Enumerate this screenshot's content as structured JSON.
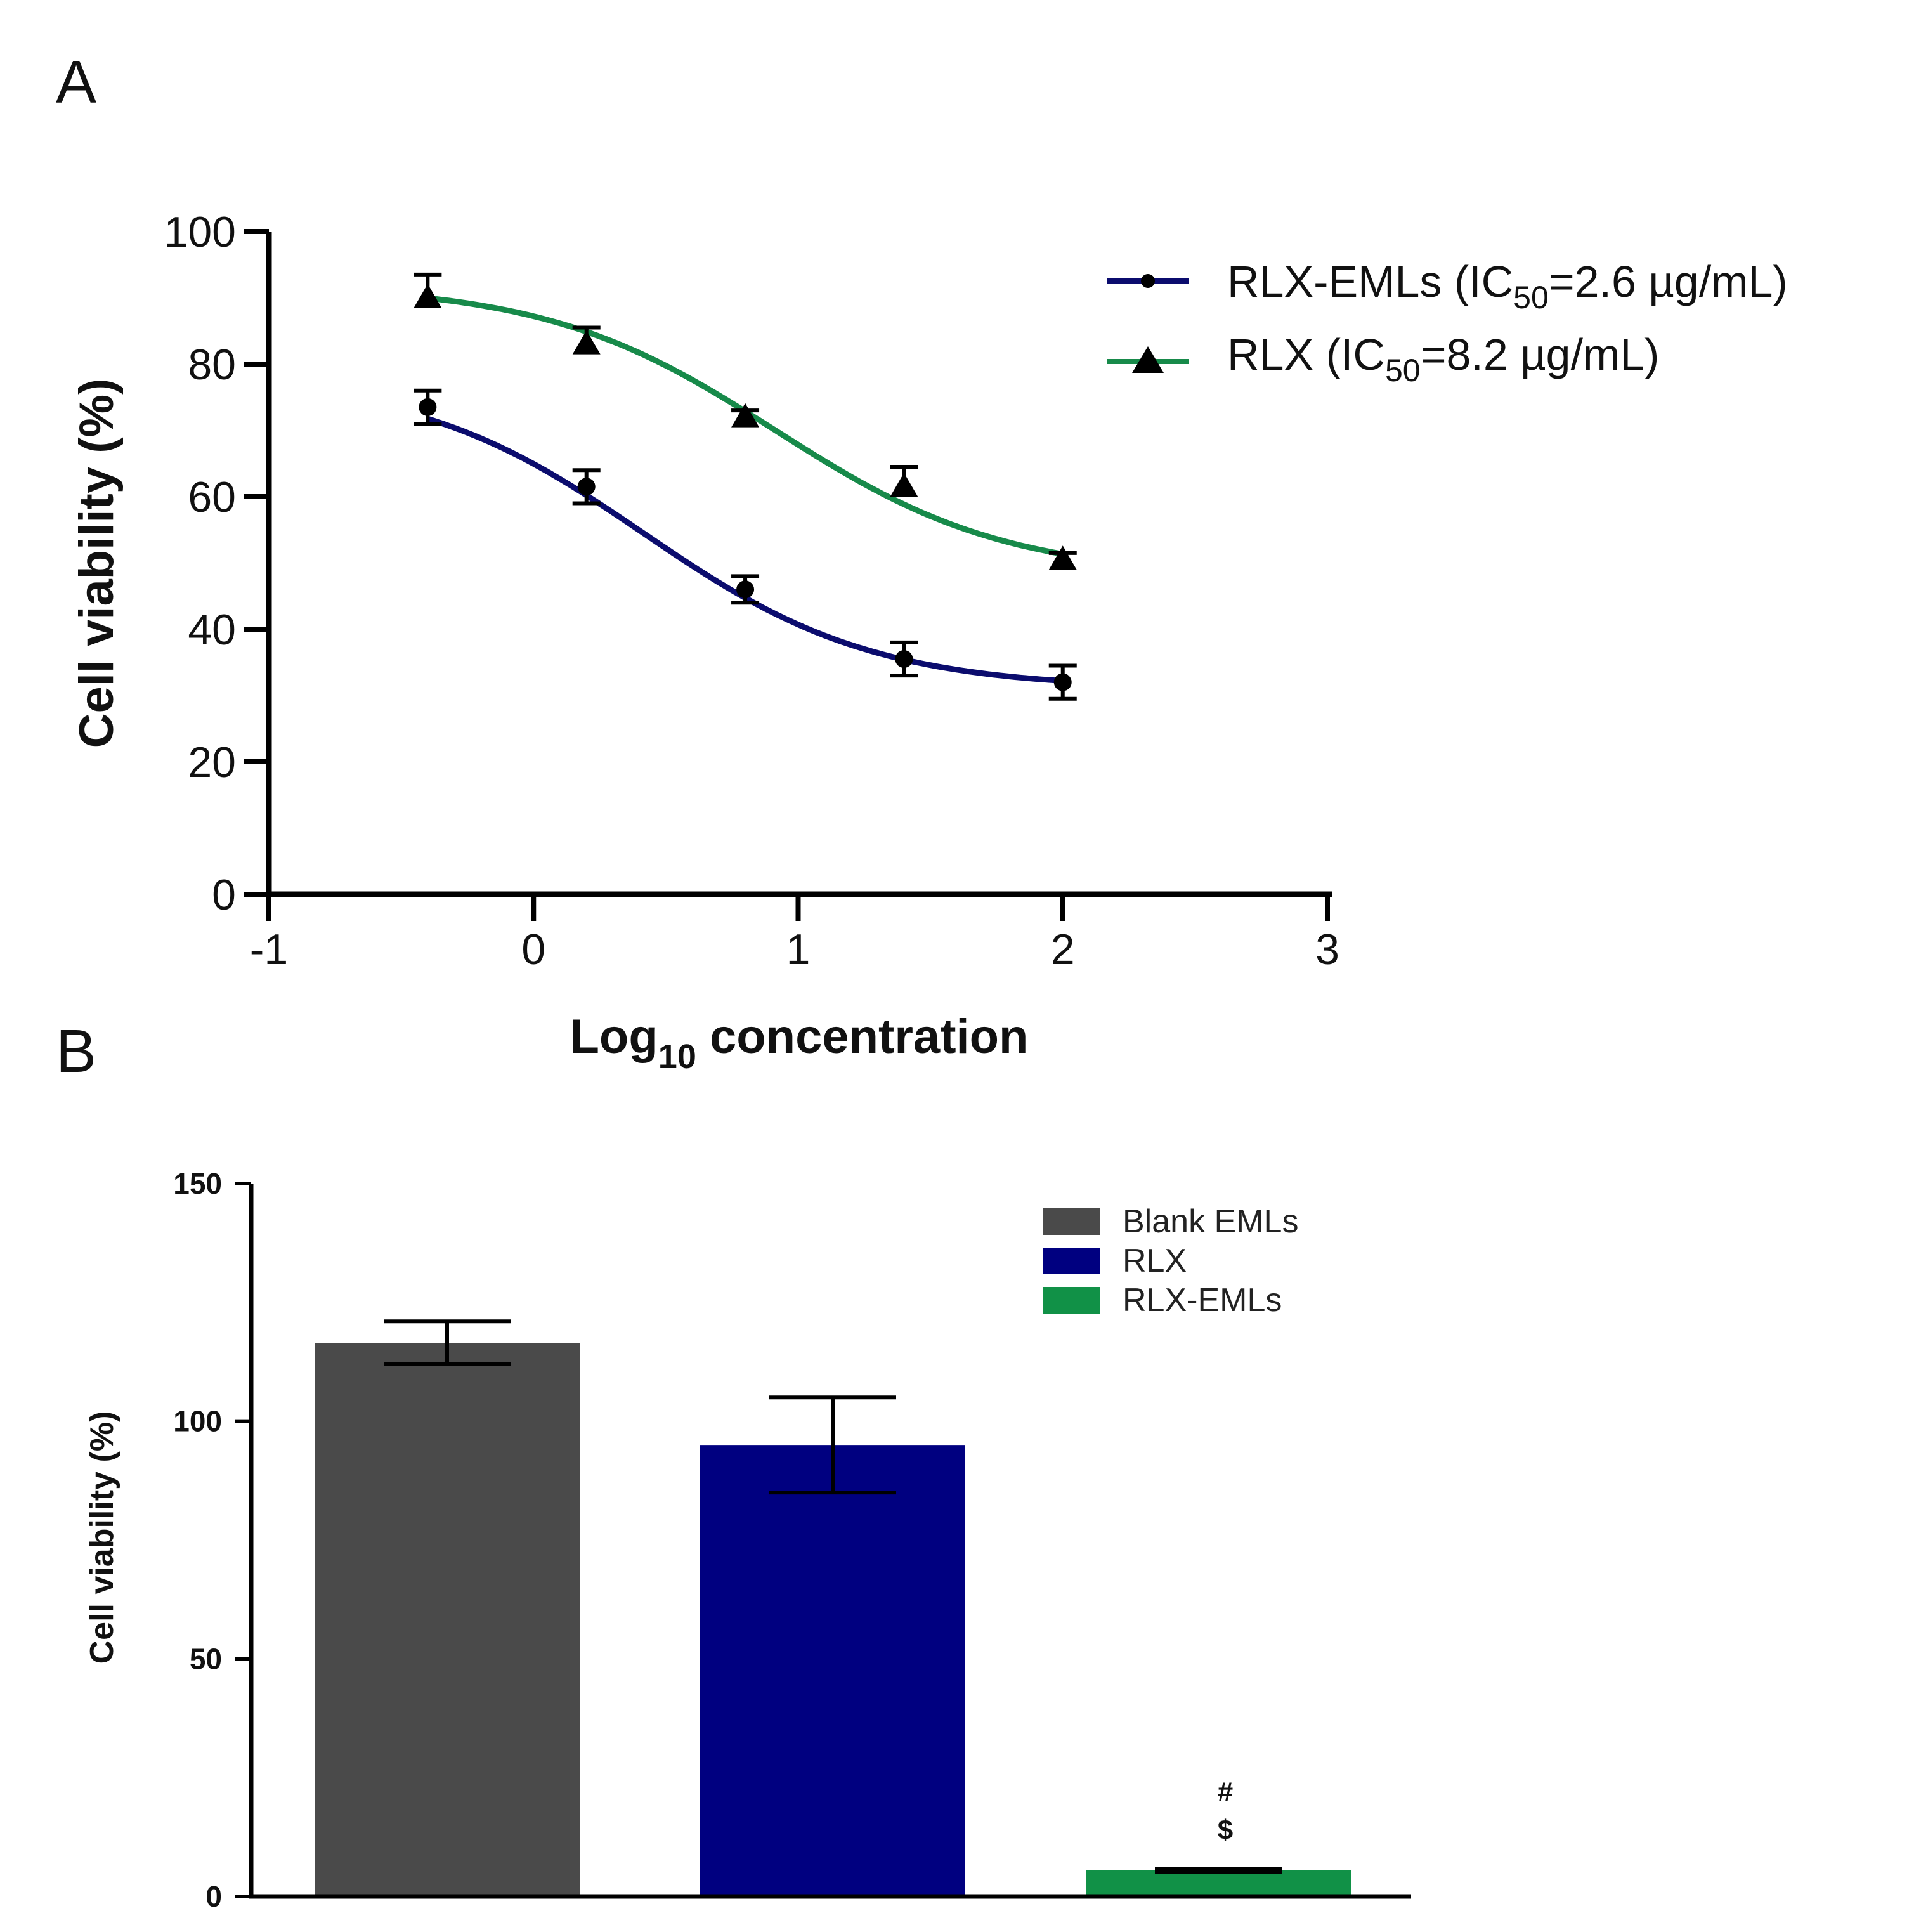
{
  "panels": {
    "a": {
      "letter": "A"
    },
    "b": {
      "letter": "B"
    }
  },
  "chart_data": [
    {
      "type": "line",
      "panel": "A",
      "xlabel": {
        "main": "Log",
        "sub": "10",
        "rest": " concentration"
      },
      "ylabel": "Cell viability (%)",
      "xlim": [
        -1,
        3
      ],
      "ylim": [
        0,
        100
      ],
      "xticks": [
        "-1",
        "0",
        "1",
        "2",
        "3"
      ],
      "yticks": [
        "0",
        "20",
        "40",
        "60",
        "80",
        "100"
      ],
      "legend_position": "top-right",
      "series": [
        {
          "name": "RLX-EMLs (IC50=2.6 µg/mL)",
          "legend": {
            "pre": "RLX-EMLs (IC",
            "sub": "50",
            "post": "=2.6 µg/mL)"
          },
          "color": "#0b0c6e",
          "marker": "circle",
          "x": [
            -0.4,
            0.2,
            0.8,
            1.4,
            2.0
          ],
          "y": [
            73.5,
            61.5,
            46.0,
            35.5,
            32.0
          ],
          "error": [
            2.5,
            2.5,
            2.0,
            2.5,
            2.5
          ],
          "fit": {
            "top": 78,
            "bottom": 31,
            "logic50": 0.415,
            "hill": 1
          }
        },
        {
          "name": "RLX (IC50=8.2 µg/mL)",
          "legend": {
            "pre": "RLX (IC",
            "sub": "50",
            "post": "=8.2 µg/mL)"
          },
          "color": "#178a4a",
          "marker": "triangle",
          "x": [
            -0.4,
            0.2,
            0.8,
            1.4,
            2.0
          ],
          "y": [
            90.0,
            83.0,
            72.0,
            61.5,
            50.5
          ],
          "error": [
            3.5,
            2.5,
            1.0,
            3.0,
            1.0
          ],
          "fit": {
            "top": 92,
            "bottom": 48,
            "logic50": 0.914,
            "hill": 1
          }
        }
      ]
    },
    {
      "type": "bar",
      "panel": "B",
      "ylabel": "Cell viability (%)",
      "ylim": [
        0,
        150
      ],
      "yticks": [
        "0",
        "50",
        "100",
        "150"
      ],
      "legend_position": "top-right",
      "categories": [
        "Blank EMLs",
        "RLX",
        "RLX-EMLs"
      ],
      "values": [
        116.5,
        95.0,
        5.5
      ],
      "errors": [
        4.5,
        10.0,
        0.3
      ],
      "colors": [
        "#4a4a4a",
        "#000080",
        "#119147"
      ],
      "annotations": [
        "#",
        "$"
      ]
    }
  ]
}
